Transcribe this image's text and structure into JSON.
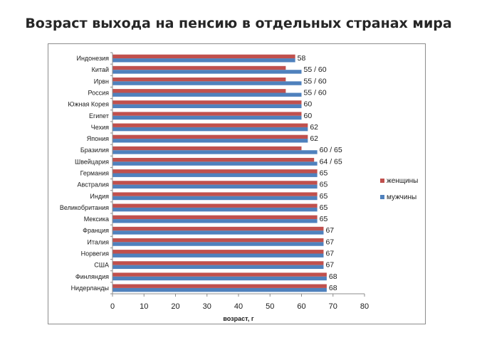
{
  "chart_data": {
    "type": "bar",
    "orientation": "horizontal",
    "title": "Возраст выхода на пенсию в отдельных странах мира",
    "xlabel": "возраст, г",
    "xlim": [
      0,
      80
    ],
    "xticks": [
      "0",
      "10",
      "20",
      "30",
      "40",
      "50",
      "60",
      "70",
      "80"
    ],
    "grid": false,
    "legend_position": "right",
    "categories": [
      "Индонезия",
      "Китай",
      "Ирвн",
      "Россия",
      "Южная Корея",
      "Египет",
      "Чехия",
      "Япония",
      "Бразилия",
      "Швейцария",
      "Германия",
      "Австралия",
      "Индия",
      "Великобритания",
      "Мексика",
      "Франция",
      "Италия",
      "Норвегия",
      "США",
      "Финляндия",
      "Нидерланды"
    ],
    "series": [
      {
        "name": "женщины",
        "color": "#C0504D",
        "values": [
          58,
          55,
          55,
          55,
          60,
          60,
          62,
          62,
          60,
          64,
          65,
          65,
          65,
          65,
          65,
          67,
          67,
          67,
          67,
          68,
          68
        ]
      },
      {
        "name": "мужчины",
        "color": "#4F81BD",
        "values": [
          58,
          60,
          60,
          60,
          60,
          60,
          62,
          62,
          65,
          65,
          65,
          65,
          65,
          65,
          65,
          67,
          67,
          67,
          67,
          68,
          68
        ]
      }
    ],
    "data_labels": [
      "58",
      "55 / 60",
      "55 / 60",
      "55 / 60",
      "60",
      "60",
      "62",
      "62",
      "60 / 65",
      "64 / 65",
      "65",
      "65",
      "65",
      "65",
      "65",
      "67",
      "67",
      "67",
      "67",
      "68",
      "68"
    ]
  }
}
